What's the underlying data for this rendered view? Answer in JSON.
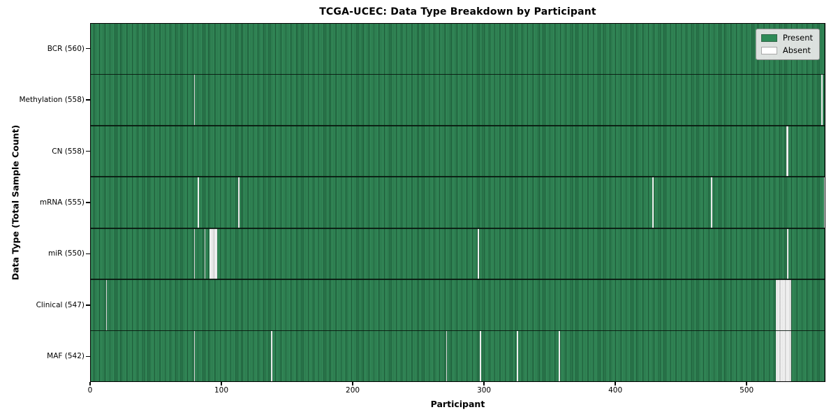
{
  "chart_data": {
    "type": "heatmap",
    "title": "TCGA-UCEC: Data Type Breakdown by Participant",
    "xlabel": "Participant",
    "ylabel": "Data Type (Total Sample Count)",
    "xlim": [
      0,
      560
    ],
    "x_ticks": [
      0,
      100,
      200,
      300,
      400,
      500
    ],
    "grid": false,
    "legend_position": "upper right",
    "colors": {
      "present": "#2e8b57",
      "absent": "#ffffff",
      "cell_edge": "#0a2415",
      "legend_bg": "#e9e9e9"
    },
    "legend": [
      {
        "label": "Present",
        "color": "#2e8b57"
      },
      {
        "label": "Absent",
        "color": "#ffffff"
      }
    ],
    "rows": [
      {
        "key": "bcr",
        "label": "BCR (560)",
        "data_type": "BCR",
        "present_count": 560,
        "absent_participants": []
      },
      {
        "key": "methylation",
        "label": "Methylation (558)",
        "data_type": "Methylation",
        "present_count": 558,
        "absent_participants": [
          79,
          557
        ]
      },
      {
        "key": "cn",
        "label": "CN (558)",
        "data_type": "CN",
        "present_count": 558,
        "absent_participants": [
          530,
          531
        ]
      },
      {
        "key": "mrna",
        "label": "mRNA (555)",
        "data_type": "mRNA",
        "present_count": 555,
        "absent_participants": [
          82,
          113,
          428,
          473,
          559
        ]
      },
      {
        "key": "mir",
        "label": "miR (550)",
        "data_type": "miR",
        "present_count": 550,
        "absent_participants": [
          79,
          87,
          91,
          92,
          93,
          94,
          95,
          96,
          295,
          531
        ]
      },
      {
        "key": "clinical",
        "label": "Clinical (547)",
        "data_type": "Clinical",
        "present_count": 547,
        "absent_participants": [
          12,
          522,
          523,
          524,
          525,
          526,
          527,
          528,
          529,
          530,
          531,
          532,
          533
        ]
      },
      {
        "key": "maf",
        "label": "MAF (542)",
        "data_type": "MAF",
        "present_count": 542,
        "absent_participants": [
          79,
          138,
          271,
          297,
          325,
          357,
          522,
          523,
          524,
          525,
          526,
          527,
          528,
          529,
          530,
          531,
          532,
          533
        ]
      }
    ]
  }
}
